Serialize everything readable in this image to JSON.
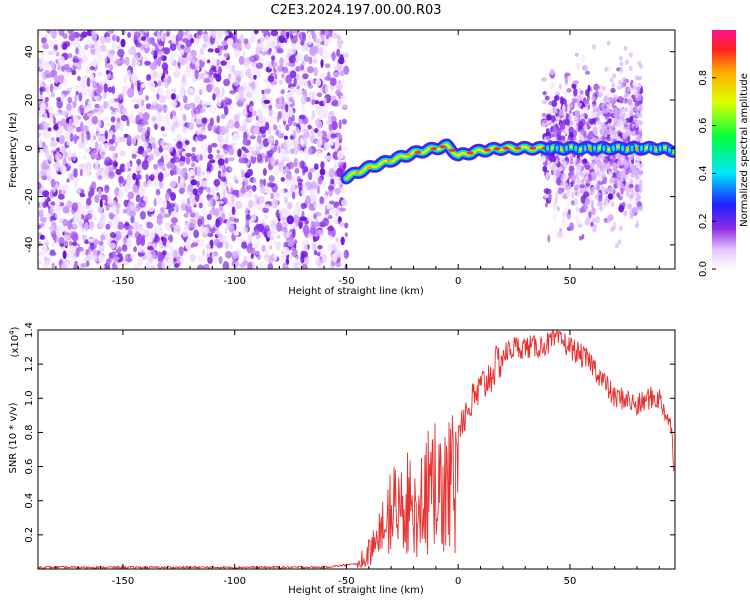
{
  "title": "C2E3.2024.197.00.00.R03",
  "chart_data": [
    {
      "type": "heatmap",
      "xlabel": "Height of straight line (km)",
      "ylabel": "Frequency (Hz)",
      "xlim": [
        -188,
        97
      ],
      "ylim": [
        -50,
        49
      ],
      "xticks": [
        -150,
        -100,
        -50,
        0,
        50
      ],
      "yticks": [
        -40,
        -20,
        0,
        20,
        40
      ],
      "colorbar": {
        "label": "Normalized spectral amplitude",
        "range": [
          0.0,
          1.0
        ],
        "ticks": [
          0.0,
          0.2,
          0.4,
          0.6,
          0.8
        ]
      },
      "features": {
        "noise_region_km": [
          -188,
          -50
        ],
        "feature_line": {
          "x": [
            -50,
            -40,
            -30,
            -20,
            -10,
            -5,
            0,
            5,
            10,
            20,
            30,
            40,
            50,
            60,
            70,
            80,
            90,
            97
          ],
          "y": [
            -12,
            -8,
            -5,
            -2,
            0,
            1,
            -3,
            -2,
            -1,
            0,
            0,
            0,
            0,
            0,
            0,
            0,
            0,
            -1
          ]
        },
        "spread_region_km": [
          38,
          82
        ]
      }
    },
    {
      "type": "line",
      "xlabel": "Height of straight line (km)",
      "ylabel": "SNR (10 * v/v)",
      "y_multiplier_label": "(x10",
      "y_multiplier_exp": "4",
      "y_multiplier_close": ")",
      "xlim": [
        -188,
        97
      ],
      "ylim": [
        0,
        1.4
      ],
      "xticks": [
        -150,
        -100,
        -50,
        0,
        50
      ],
      "yticks": [
        0.2,
        0.4,
        0.6,
        0.8,
        1.0,
        1.2,
        1.4
      ],
      "ytick_labels": [
        "0.2",
        "0.4",
        "0.6",
        "0.8",
        "1.0",
        "1.2",
        "1.4"
      ],
      "series_color": "#e8302e",
      "x": [
        -188,
        -150,
        -100,
        -60,
        -45,
        -40,
        -35,
        -30,
        -25,
        -20,
        -15,
        -10,
        -5,
        0,
        5,
        10,
        15,
        20,
        25,
        30,
        35,
        40,
        45,
        50,
        55,
        60,
        65,
        70,
        75,
        80,
        85,
        90,
        95,
        97
      ],
      "y": [
        0.01,
        0.01,
        0.01,
        0.01,
        0.03,
        0.1,
        0.25,
        0.4,
        0.45,
        0.5,
        0.55,
        0.6,
        0.75,
        0.85,
        0.95,
        1.05,
        1.15,
        1.25,
        1.3,
        1.3,
        1.3,
        1.32,
        1.35,
        1.3,
        1.25,
        1.2,
        1.1,
        1.0,
        1.0,
        0.95,
        1.0,
        1.0,
        0.85,
        0.55
      ]
    }
  ]
}
